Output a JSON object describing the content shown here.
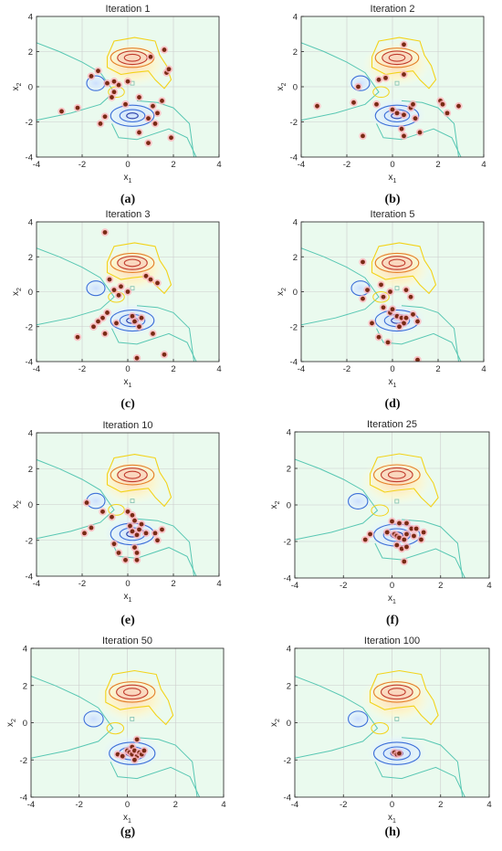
{
  "chart_data": [
    {
      "type": "scatter",
      "panel_label": "(a)",
      "title": "Iteration 1",
      "xlabel": "x",
      "xlabel_sub": "1",
      "ylabel": "x",
      "ylabel_sub": "2",
      "xlim": [
        -4,
        4
      ],
      "ylim": [
        -4,
        4
      ],
      "xticks": [
        -4,
        -2,
        0,
        2,
        4
      ],
      "yticks": [
        -4,
        -2,
        0,
        2,
        4
      ],
      "grid": true,
      "points": [
        [
          -1.6,
          0.6
        ],
        [
          -1.3,
          0.9
        ],
        [
          -0.9,
          0.2
        ],
        [
          -0.6,
          -0.3
        ],
        [
          -0.4,
          0.1
        ],
        [
          0.0,
          0.3
        ],
        [
          0.5,
          -0.6
        ],
        [
          -0.1,
          -1.0
        ],
        [
          -0.7,
          -0.6
        ],
        [
          -2.2,
          -1.2
        ],
        [
          -2.9,
          -1.4
        ],
        [
          -1.0,
          -1.7
        ],
        [
          -1.2,
          -2.1
        ],
        [
          1.1,
          -1.1
        ],
        [
          1.3,
          -1.5
        ],
        [
          0.9,
          -1.8
        ],
        [
          1.5,
          -0.8
        ],
        [
          1.6,
          2.1
        ],
        [
          1.7,
          0.8
        ],
        [
          1.8,
          1.0
        ],
        [
          1.2,
          -2.1
        ],
        [
          1.9,
          -2.9
        ],
        [
          0.5,
          -2.6
        ],
        [
          0.9,
          -3.2
        ],
        [
          -0.6,
          0.3
        ],
        [
          1.0,
          1.7
        ]
      ]
    },
    {
      "type": "scatter",
      "panel_label": "(b)",
      "title": "Iteration 2",
      "xlabel": "x",
      "xlabel_sub": "1",
      "ylabel": "x",
      "ylabel_sub": "2",
      "xlim": [
        -4,
        4
      ],
      "ylim": [
        -4,
        4
      ],
      "xticks": [
        -4,
        -2,
        0,
        2,
        4
      ],
      "yticks": [
        -4,
        -2,
        0,
        2,
        4
      ],
      "grid": true,
      "points": [
        [
          0.5,
          2.4
        ],
        [
          0.5,
          0.7
        ],
        [
          -0.3,
          0.5
        ],
        [
          -0.6,
          0.4
        ],
        [
          -1.5,
          0.0
        ],
        [
          -3.3,
          -1.1
        ],
        [
          -1.7,
          -0.9
        ],
        [
          -1.3,
          -2.8
        ],
        [
          -0.7,
          -1.0
        ],
        [
          0.0,
          -1.3
        ],
        [
          0.2,
          -1.5
        ],
        [
          0.5,
          -1.6
        ],
        [
          0.8,
          -1.2
        ],
        [
          0.9,
          -1.0
        ],
        [
          1.0,
          -1.8
        ],
        [
          0.4,
          -2.4
        ],
        [
          0.5,
          -2.8
        ],
        [
          1.2,
          -2.6
        ],
        [
          2.1,
          -0.8
        ],
        [
          2.2,
          -1.0
        ],
        [
          2.4,
          -1.5
        ],
        [
          2.9,
          -1.1
        ]
      ]
    },
    {
      "type": "scatter",
      "panel_label": "(c)",
      "title": "Iteration 3",
      "xlabel": "x",
      "xlabel_sub": "1",
      "ylabel": "x",
      "ylabel_sub": "2",
      "xlim": [
        -4,
        4
      ],
      "ylim": [
        -4,
        4
      ],
      "xticks": [
        -4,
        -2,
        0,
        2,
        4
      ],
      "yticks": [
        -4,
        -2,
        0,
        2,
        4
      ],
      "grid": true,
      "points": [
        [
          -1.0,
          3.4
        ],
        [
          -0.8,
          0.7
        ],
        [
          -0.6,
          0.1
        ],
        [
          -0.3,
          0.3
        ],
        [
          -0.4,
          -0.2
        ],
        [
          0.0,
          0.0
        ],
        [
          0.8,
          0.9
        ],
        [
          1.0,
          0.7
        ],
        [
          1.3,
          0.5
        ],
        [
          -2.2,
          -2.6
        ],
        [
          -1.5,
          -2.0
        ],
        [
          -1.1,
          -1.5
        ],
        [
          -0.9,
          -1.2
        ],
        [
          -1.3,
          -1.7
        ],
        [
          -1.0,
          -2.4
        ],
        [
          -0.5,
          -1.8
        ],
        [
          0.2,
          -1.4
        ],
        [
          0.3,
          -1.7
        ],
        [
          0.5,
          -2.0
        ],
        [
          0.6,
          -1.5
        ],
        [
          1.1,
          -2.4
        ],
        [
          1.6,
          -3.6
        ],
        [
          0.4,
          -3.8
        ]
      ]
    },
    {
      "type": "scatter",
      "panel_label": "(d)",
      "title": "Iteration 5",
      "xlabel": "x",
      "xlabel_sub": "1",
      "ylabel": "x",
      "ylabel_sub": "2",
      "xlim": [
        -4,
        4
      ],
      "ylim": [
        -4,
        4
      ],
      "xticks": [
        -4,
        -2,
        0,
        2,
        4
      ],
      "yticks": [
        -4,
        -2,
        0,
        2,
        4
      ],
      "grid": true,
      "points": [
        [
          -1.3,
          1.7
        ],
        [
          -1.1,
          0.1
        ],
        [
          -1.3,
          -0.4
        ],
        [
          -0.5,
          0.4
        ],
        [
          -0.4,
          -0.3
        ],
        [
          -0.1,
          0.0
        ],
        [
          0.6,
          0.1
        ],
        [
          0.8,
          -0.3
        ],
        [
          -0.4,
          -0.9
        ],
        [
          -0.1,
          -1.2
        ],
        [
          0.0,
          -1.0
        ],
        [
          0.2,
          -1.4
        ],
        [
          0.4,
          -1.5
        ],
        [
          0.5,
          -1.8
        ],
        [
          0.6,
          -1.5
        ],
        [
          0.9,
          -1.3
        ],
        [
          1.1,
          -1.7
        ],
        [
          0.3,
          -2.0
        ],
        [
          -0.6,
          -2.6
        ],
        [
          -0.2,
          -2.9
        ],
        [
          -0.9,
          -1.8
        ],
        [
          1.1,
          -3.9
        ]
      ]
    },
    {
      "type": "scatter",
      "panel_label": "(e)",
      "title": "Iteration 10",
      "xlabel": "x",
      "xlabel_sub": "1",
      "ylabel": "x",
      "ylabel_sub": "2",
      "xlim": [
        -4,
        4
      ],
      "ylim": [
        -4,
        4
      ],
      "xticks": [
        -4,
        -2,
        0,
        2,
        4
      ],
      "yticks": [
        -4,
        -2,
        0,
        2,
        4
      ],
      "grid": true,
      "points": [
        [
          -1.8,
          0.1
        ],
        [
          -1.6,
          -1.3
        ],
        [
          -1.9,
          -1.6
        ],
        [
          -1.1,
          -0.4
        ],
        [
          -0.7,
          -0.7
        ],
        [
          0.0,
          -0.4
        ],
        [
          0.2,
          -0.6
        ],
        [
          0.3,
          -0.9
        ],
        [
          0.1,
          -1.2
        ],
        [
          0.2,
          -1.5
        ],
        [
          0.4,
          -1.7
        ],
        [
          0.5,
          -1.4
        ],
        [
          0.6,
          -1.1
        ],
        [
          0.8,
          -1.6
        ],
        [
          1.2,
          -1.6
        ],
        [
          1.5,
          -1.4
        ],
        [
          1.3,
          -2.0
        ],
        [
          0.3,
          -2.4
        ],
        [
          0.4,
          -2.7
        ],
        [
          -0.6,
          -2.2
        ],
        [
          -0.4,
          -2.7
        ],
        [
          -0.1,
          -3.1
        ],
        [
          0.4,
          -3.1
        ]
      ]
    },
    {
      "type": "scatter",
      "panel_label": "(f)",
      "title": "Iteration 25",
      "xlabel": "x",
      "xlabel_sub": "1",
      "ylabel": "x",
      "ylabel_sub": "2",
      "xlim": [
        -4,
        4
      ],
      "ylim": [
        -4,
        4
      ],
      "xticks": [
        -4,
        -2,
        0,
        2,
        4
      ],
      "yticks": [
        -4,
        -2,
        0,
        2,
        4
      ],
      "grid": true,
      "points": [
        [
          0.0,
          -0.9
        ],
        [
          0.3,
          -1.0
        ],
        [
          0.6,
          -1.0
        ],
        [
          0.8,
          -1.3
        ],
        [
          -0.2,
          -1.5
        ],
        [
          0.1,
          -1.6
        ],
        [
          0.2,
          -1.7
        ],
        [
          0.3,
          -1.8
        ],
        [
          0.5,
          -1.9
        ],
        [
          0.6,
          -1.6
        ],
        [
          0.9,
          -1.7
        ],
        [
          1.0,
          -1.3
        ],
        [
          1.3,
          -1.5
        ],
        [
          -0.9,
          -1.6
        ],
        [
          -1.1,
          -1.9
        ],
        [
          0.2,
          -2.2
        ],
        [
          0.4,
          -2.4
        ],
        [
          0.6,
          -2.3
        ],
        [
          0.5,
          -3.1
        ],
        [
          1.2,
          -1.9
        ]
      ]
    },
    {
      "type": "scatter",
      "panel_label": "(g)",
      "title": "Iteration 50",
      "xlabel": "x",
      "xlabel_sub": "1",
      "ylabel": "x",
      "ylabel_sub": "2",
      "xlim": [
        -4,
        4
      ],
      "ylim": [
        -4,
        4
      ],
      "xticks": [
        -4,
        -2,
        0,
        2,
        4
      ],
      "yticks": [
        -4,
        -2,
        0,
        2,
        4
      ],
      "grid": true,
      "points": [
        [
          0.4,
          -0.9
        ],
        [
          0.2,
          -1.3
        ],
        [
          0.0,
          -1.5
        ],
        [
          0.1,
          -1.6
        ],
        [
          0.2,
          -1.7
        ],
        [
          0.3,
          -1.5
        ],
        [
          0.4,
          -1.8
        ],
        [
          0.5,
          -1.6
        ],
        [
          0.6,
          -1.7
        ],
        [
          0.7,
          -1.5
        ],
        [
          -0.4,
          -1.7
        ],
        [
          -0.2,
          -1.8
        ],
        [
          0.3,
          -2.0
        ]
      ]
    },
    {
      "type": "scatter",
      "panel_label": "(h)",
      "title": "Iteration 100",
      "xlabel": "x",
      "xlabel_sub": "1",
      "ylabel": "x",
      "ylabel_sub": "2",
      "xlim": [
        -4,
        4
      ],
      "ylim": [
        -4,
        4
      ],
      "xticks": [
        -4,
        -2,
        0,
        2,
        4
      ],
      "yticks": [
        -4,
        -2,
        0,
        2,
        4
      ],
      "grid": true,
      "points": [
        [
          0.1,
          -1.6
        ],
        [
          0.2,
          -1.7
        ],
        [
          0.3,
          -1.65
        ]
      ]
    }
  ],
  "colors": {
    "background": "#eafaee",
    "grid": "#cccccc",
    "axis": "#262626",
    "point_fill": "#7a2a14",
    "point_halo": "#ffb2ba",
    "contour_red": "#c0392b",
    "contour_orange": "#e5812b",
    "contour_yellow": "#f3d31a",
    "contour_blue": "#3c6fd8",
    "contour_teal": "#58c7b3"
  }
}
